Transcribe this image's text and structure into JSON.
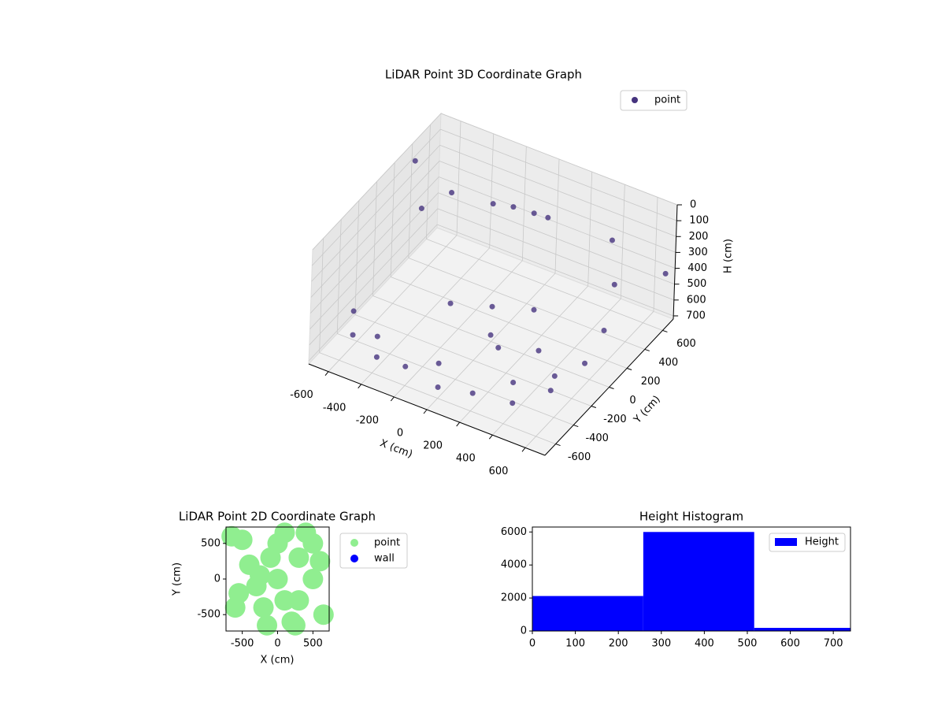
{
  "chart_data": [
    {
      "type": "scatter3d",
      "title": "LiDAR Point 3D Coordinate Graph",
      "x_label": "X (cm)",
      "y_label": "Y (cm)",
      "z_label": "H (cm)",
      "xlim": [
        -720,
        720
      ],
      "ylim": [
        -720,
        720
      ],
      "zlim": [
        0,
        720
      ],
      "z_inverted": true,
      "xticks": [
        -600,
        -400,
        -200,
        0,
        200,
        400,
        600
      ],
      "yticks": [
        -600,
        -400,
        -200,
        0,
        200,
        400,
        600
      ],
      "zticks": [
        0,
        100,
        200,
        300,
        400,
        500,
        600,
        700
      ],
      "grid": true,
      "legend": "upper right",
      "series": [
        {
          "name": "point",
          "color": "#46337e",
          "x": [
            -600,
            -400,
            -200,
            0,
            200,
            400,
            550,
            620,
            600,
            550,
            450,
            -600,
            -400,
            0,
            400,
            -100,
            0,
            100,
            -600,
            -500,
            -300,
            0,
            -200,
            200,
            100,
            700,
            700,
            650,
            -700,
            200
          ],
          "y": [
            -450,
            -550,
            -600,
            -600,
            -580,
            -500,
            -350,
            -100,
            150,
            350,
            500,
            -450,
            -550,
            -600,
            -500,
            400,
            450,
            420,
            300,
            450,
            550,
            0,
            -100,
            100,
            -200,
            -600,
            650,
            -700,
            400,
            -300
          ],
          "z": [
            650,
            650,
            600,
            650,
            620,
            650,
            600,
            550,
            500,
            350,
            200,
            500,
            520,
            500,
            520,
            150,
            180,
            150,
            300,
            250,
            300,
            500,
            500,
            500,
            520,
            300,
            400,
            100,
            100,
            500
          ]
        }
      ]
    },
    {
      "type": "scatter",
      "title": "LiDAR Point 2D Coordinate Graph",
      "x_label": "X (cm)",
      "y_label": "Y (cm)",
      "xlim": [
        -730,
        730
      ],
      "ylim": [
        -730,
        730
      ],
      "xticks": [
        -500,
        0,
        500
      ],
      "yticks": [
        -500,
        0,
        500
      ],
      "legend": "outside right",
      "series": [
        {
          "name": "point",
          "color": "#90ee90",
          "x": [
            0,
            300,
            300,
            -200,
            200,
            500,
            500,
            0,
            -100,
            -300,
            100,
            -600,
            -400,
            -500,
            -650,
            650,
            -550,
            400,
            600,
            100,
            -150,
            250,
            -250
          ],
          "y": [
            0,
            300,
            -300,
            -400,
            -600,
            0,
            500,
            500,
            300,
            -100,
            -300,
            -400,
            200,
            550,
            600,
            -500,
            -200,
            650,
            250,
            650,
            -650,
            -650,
            50
          ]
        },
        {
          "name": "wall",
          "color": "#0000ff",
          "x": [],
          "y": []
        }
      ]
    },
    {
      "type": "histogram",
      "title": "Height Histogram",
      "bins": [
        0,
        258,
        516,
        774
      ],
      "series": [
        {
          "name": "Height",
          "color": "#0000ff",
          "values": [
            2120,
            6000,
            190
          ]
        }
      ],
      "xlim": [
        0,
        740
      ],
      "ylim": [
        0,
        6300
      ],
      "xticks": [
        0,
        100,
        200,
        300,
        400,
        500,
        600,
        700
      ],
      "yticks": [
        0,
        2000,
        4000,
        6000
      ],
      "legend": "upper right"
    }
  ]
}
